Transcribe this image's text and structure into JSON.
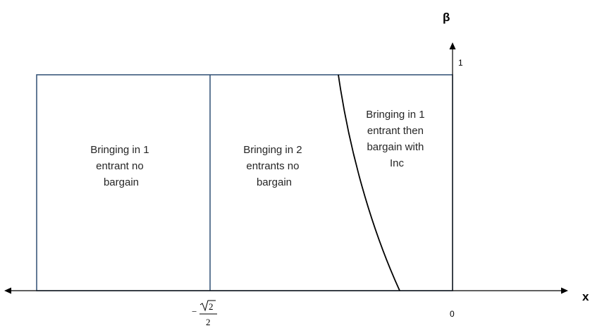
{
  "axes": {
    "x_name": "x",
    "y_name": "β",
    "x_ticks": [
      {
        "id": "neg-sqrt2-over-2",
        "sign": "−",
        "radicand": "2",
        "denominator": "2",
        "value": -0.7071
      },
      {
        "id": "zero",
        "label": "0",
        "value": 0
      }
    ],
    "y_ticks": [
      {
        "id": "one",
        "label": "1",
        "value": 1
      }
    ]
  },
  "regions": [
    {
      "id": "one-entrant-no-bargain",
      "lines": [
        "Bringing in 1",
        "entrant no",
        "bargain"
      ]
    },
    {
      "id": "two-entrants-no-bargain",
      "lines": [
        "Bringing in 2",
        "entrants no",
        "bargain"
      ]
    },
    {
      "id": "one-entrant-then-bargain",
      "lines": [
        "Bringing in 1",
        "entrant then",
        "bargain with",
        "Inc"
      ]
    }
  ],
  "colors": {
    "region_border": "#2f4f74",
    "axis": "#000000",
    "curve": "#000000",
    "text": "#262626"
  }
}
